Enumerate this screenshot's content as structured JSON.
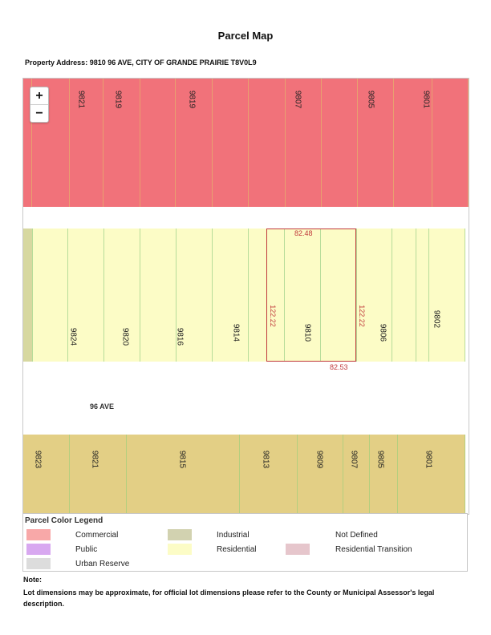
{
  "title": "Parcel Map",
  "address": "Property Address: 9810 96 AVE, CITY OF GRANDE PRAIRIE T8V0L9",
  "map": {
    "zoom_in": "+",
    "zoom_out": "−",
    "top_numbers": [
      "9821",
      "9819",
      "9819",
      "9807",
      "9805",
      "9801"
    ],
    "mid_numbers": [
      "9824",
      "9820",
      "9816",
      "9814",
      "9810",
      "9806",
      "9802"
    ],
    "bottom_numbers": [
      "9823",
      "9821",
      "9815",
      "9813",
      "9809",
      "9807",
      "9805",
      "9801"
    ],
    "street": "96 AVE",
    "dimensions": {
      "top": "82.48",
      "bottom": "82.53",
      "left": "122.22",
      "right": "122.22"
    }
  },
  "legend": {
    "title": "Parcel Color Legend",
    "items": [
      {
        "label": "Commercial",
        "color": "#f8a8a8"
      },
      {
        "label": "Industrial",
        "color": "#d2d2b0"
      },
      {
        "label": "Not Defined",
        "color": "#ffffff"
      },
      {
        "label": "Public",
        "color": "#d8a8f0"
      },
      {
        "label": "Residential",
        "color": "#fcfcc6"
      },
      {
        "label": "Residential Transition",
        "color": "#e6c6cc"
      },
      {
        "label": "Urban Reserve",
        "color": "#dcdcdc"
      }
    ]
  },
  "note": {
    "title": "Note:",
    "text": "Lot dimensions may be approximate, for official lot dimensions please refer to the County or Municipal Assessor's legal description."
  }
}
